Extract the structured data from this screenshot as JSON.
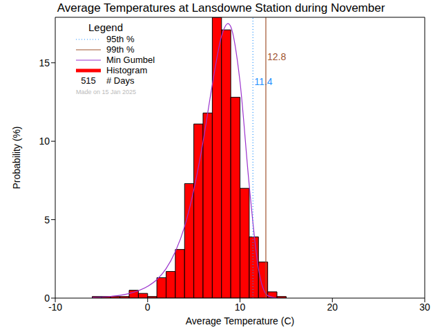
{
  "chart_data": {
    "type": "histogram",
    "title": "Average Temperatures at Lansdowne Station during November",
    "x_label": "Average Temperature (C)",
    "y_label": "Probability (%)",
    "name": "Histogram",
    "color": "#ff0000",
    "bins": [
      -6,
      -5,
      -4,
      -3,
      -2,
      -1,
      0,
      1,
      2,
      3,
      4,
      5,
      6,
      7,
      8,
      9,
      10,
      11,
      12,
      13,
      14,
      15
    ],
    "values": [
      0.1,
      0.1,
      0.1,
      0.1,
      0.5,
      0.3,
      0.1,
      1.3,
      1.7,
      3.1,
      7.3,
      11.1,
      11.8,
      17.9,
      17.1,
      12.8,
      7.0,
      3.9,
      2.3,
      0.4,
      0.1
    ],
    "xlim": [
      -10,
      30
    ],
    "xticks": [
      -10,
      0,
      10,
      20,
      30
    ],
    "ylim": [
      0,
      17.9
    ],
    "yticks": [
      0,
      5,
      10,
      15
    ],
    "series": [
      {
        "name": "Min Gumbel",
        "type": "line",
        "color": "#9a32cd",
        "x": [
          -6,
          -4,
          -2,
          0,
          1,
          2,
          3,
          4,
          5,
          6,
          7,
          8,
          8.7,
          9,
          10,
          11,
          12,
          13,
          14
        ],
        "values": [
          0.04,
          0.11,
          0.29,
          0.75,
          1.18,
          1.88,
          2.96,
          4.56,
          6.9,
          9.97,
          13.6,
          16.7,
          17.5,
          17.3,
          13.8,
          7.2,
          1.87,
          0.16,
          0
        ]
      }
    ],
    "reference_lines": [
      {
        "name": "95th %",
        "value": 11.4,
        "color": "#1e90ff",
        "line_style": "dotted"
      },
      {
        "name": "99th %",
        "value": 12.8,
        "color": "#a0522d",
        "line_style": "solid"
      }
    ],
    "legend_title": "Legend",
    "days": {
      "value": 515,
      "label": "# Days"
    },
    "annotations": [
      "Made on 15 Jan 2025"
    ]
  }
}
